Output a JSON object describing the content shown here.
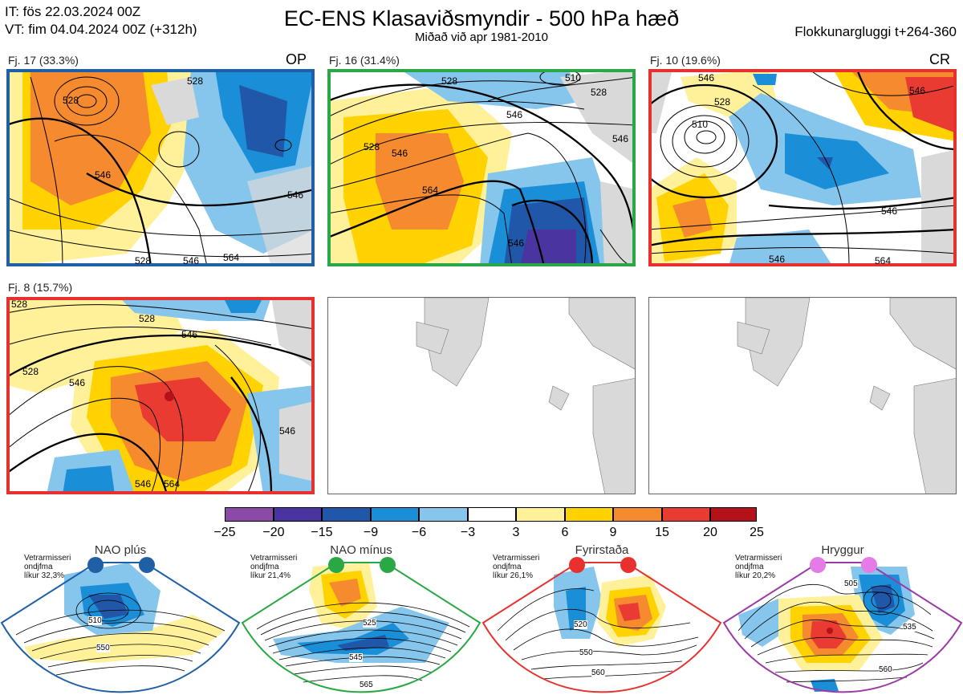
{
  "header": {
    "it_line": "IT: fös 22.03.2024 00Z",
    "vt_line": "VT: fim 04.04.2024 00Z  (+312h)",
    "title": "EC-ENS Klasaviðsmyndir - 500 hPa hæð",
    "subtitle": "Miðað við apr 1981-2010",
    "window": "Flokkunargluggi t+264-360"
  },
  "clusters": [
    {
      "label": "Fj. 17 (33.3%)",
      "tag": "OP",
      "border_color": "#1f5fa6",
      "contours": [
        "528",
        "546",
        "528",
        "546",
        "528",
        "546",
        "564"
      ]
    },
    {
      "label": "Fj. 16 (31.4%)",
      "tag": "",
      "border_color": "#2aa845",
      "contours": [
        "528",
        "528",
        "510",
        "528",
        "546",
        "546",
        "564",
        "546",
        "546"
      ]
    },
    {
      "label": "Fj. 10 (19.6%)",
      "tag": "CR",
      "border_color": "#e8312f",
      "contours": [
        "546",
        "528",
        "546",
        "510",
        "546",
        "546",
        "564"
      ]
    },
    {
      "label": "Fj. 8 (15.7%)",
      "tag": "",
      "border_color": "#e8312f",
      "contours": [
        "528",
        "528",
        "546",
        "528",
        "546",
        "546",
        "546",
        "564"
      ]
    }
  ],
  "colorbar": {
    "colors": [
      "#8a4aa6",
      "#4a35a0",
      "#2157a8",
      "#1a8fd8",
      "#86c6ec",
      "#ffffff",
      "#fff19a",
      "#ffd200",
      "#f58a2e",
      "#ea3b32",
      "#b5111b"
    ],
    "ticks": [
      "−25",
      "−20",
      "−15",
      "−9",
      "−6",
      "−3",
      "3",
      "6",
      "9",
      "15",
      "20",
      "25"
    ]
  },
  "regimes": [
    {
      "title": "NAO plús",
      "note1": "Vetrarmisseri",
      "note2": "ondjfma",
      "note3": "líkur 32,3%",
      "color": "#1f5fa6",
      "contours": [
        "510",
        "550"
      ]
    },
    {
      "title": "NAO mínus",
      "note1": "Vetrarmisseri",
      "note2": "ondjfma",
      "note3": "líkur 21,4%",
      "color": "#2aa845",
      "contours": [
        "525",
        "545",
        "565"
      ]
    },
    {
      "title": "Fyrirstaða",
      "note1": "Vetrarmisseri",
      "note2": "ondjfma",
      "note3": "líkur 26,1%",
      "color": "#e8312f",
      "contours": [
        "520",
        "550",
        "560"
      ]
    },
    {
      "title": "Hryggur",
      "note1": "Vetrarmisseri",
      "note2": "ondjfma",
      "note3": "líkur 20,2%",
      "color": "#9b3aa6",
      "contours": [
        "505",
        "535",
        "560"
      ]
    }
  ]
}
